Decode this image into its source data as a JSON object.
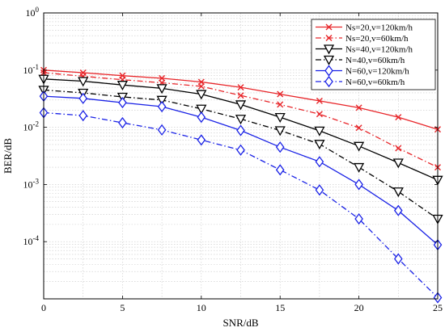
{
  "chart_data": {
    "type": "line",
    "xlabel": "SNR/dB",
    "ylabel": "BER/dB",
    "x_scale": "linear",
    "y_scale": "log",
    "xlim": [
      0,
      25
    ],
    "ylim": [
      1e-05,
      1
    ],
    "xticks": [
      0,
      5,
      10,
      15,
      20,
      25
    ],
    "yticks": [
      {
        "value": 1,
        "label": "10^0"
      },
      {
        "value": 0.1,
        "label": "10^-1"
      },
      {
        "value": 0.01,
        "label": "10^-2"
      },
      {
        "value": 0.001,
        "label": "10^-3"
      },
      {
        "value": 0.0001,
        "label": "10^-4"
      }
    ],
    "grid": true,
    "legend_position": "top-right",
    "x": [
      0,
      2.5,
      5,
      7.5,
      10,
      12.5,
      15,
      17.5,
      20,
      22.5,
      25
    ],
    "series": [
      {
        "name": "Ns=20,v=120km/h",
        "color": "#e8262a",
        "dash": "solid",
        "marker": "x",
        "values": [
          0.1,
          0.09,
          0.08,
          0.072,
          0.062,
          0.05,
          0.038,
          0.029,
          0.022,
          0.015,
          0.0092
        ]
      },
      {
        "name": "Ns=20,v=60km/h",
        "color": "#e8262a",
        "dash": "dashdot",
        "marker": "x",
        "values": [
          0.09,
          0.078,
          0.068,
          0.06,
          0.052,
          0.036,
          0.025,
          0.017,
          0.0098,
          0.0043,
          0.002
        ]
      },
      {
        "name": "Ns=40,v=120km/h",
        "color": "#000000",
        "dash": "solid",
        "marker": "triangle-down",
        "values": [
          0.07,
          0.064,
          0.055,
          0.048,
          0.038,
          0.025,
          0.015,
          0.0087,
          0.0047,
          0.0024,
          0.0012
        ]
      },
      {
        "name": "N=40,v=60km/h",
        "color": "#000000",
        "dash": "dashdot",
        "marker": "triangle-down",
        "values": [
          0.045,
          0.04,
          0.034,
          0.03,
          0.021,
          0.014,
          0.0088,
          0.0051,
          0.002,
          0.00075,
          0.00025
        ]
      },
      {
        "name": "N=60,v=120km/h",
        "color": "#1a22e6",
        "dash": "solid",
        "marker": "diamond",
        "values": [
          0.035,
          0.032,
          0.027,
          0.023,
          0.015,
          0.0088,
          0.0045,
          0.0025,
          0.001,
          0.00035,
          8.8e-05
        ]
      },
      {
        "name": "N=60,v=60km/h",
        "color": "#1a22e6",
        "dash": "dashdot",
        "marker": "diamond",
        "values": [
          0.018,
          0.016,
          0.012,
          0.009,
          0.006,
          0.004,
          0.0018,
          0.0008,
          0.00025,
          5e-05,
          1.05e-05
        ]
      }
    ]
  }
}
